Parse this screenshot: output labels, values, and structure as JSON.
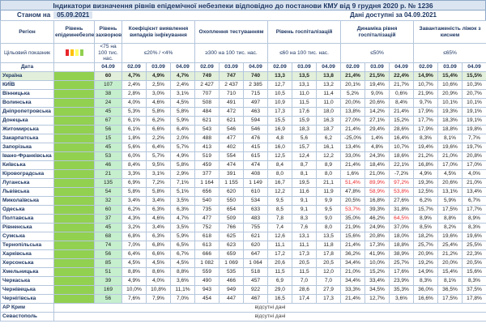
{
  "header": {
    "title": "Індикатори визначення рівнів епідемічної небезпеки відповідно до постанови КМУ від 9 грудня 2020 р. № 1236",
    "as_of_label": "Станом на",
    "as_of_date": "05.09.2021",
    "available_label": "Дані доступні за",
    "available_date": "04.09.2021"
  },
  "columns": {
    "region": "Регіон",
    "level": "Рівень епідемнебезпеки",
    "incidence": "Рівень захворюваності",
    "coef": "Коефіцієнт виявлення випадків інфікування",
    "testing": "Охоплення тестуванням",
    "hosp": "Рівень госпіталізацій",
    "dynamics": "Динаміка рівня госпіталізацій",
    "beds": "Завантаженість ліжок з киснем"
  },
  "target": {
    "label": "Цільовий показник",
    "incidence": "<75 на 100 тис. нас.",
    "coef": "≤20% / <4%",
    "testing": "≥300 на 100 тис. нас.",
    "hosp": "≤60 на 100 тис. нас.",
    "dynamics": "≤50%",
    "beds": "≤65%"
  },
  "dates": {
    "label": "Дата",
    "incidence": "04.09",
    "groups": [
      "02.09",
      "03.09",
      "04.09"
    ]
  },
  "rows": [
    {
      "region": "Україна",
      "cells": [
        "60",
        "4,7%",
        "4,9%",
        "4,7%",
        "749",
        "747",
        "740",
        "13,3",
        "13,5",
        "13,8",
        "21,4%",
        "21,5%",
        "22,4%",
        "14,9%",
        "15,4%",
        "15,5%"
      ]
    },
    {
      "region": "КИЇВ",
      "cells": [
        "107",
        "2,4%",
        "2,5%",
        "2,4%",
        "2 427",
        "2 437",
        "2 385",
        "12,7",
        "13,1",
        "13,2",
        "20,1%",
        "19,4%",
        "21,7%",
        "10,7%",
        "10,6%",
        "10,3%"
      ]
    },
    {
      "region": "Вінницька",
      "cells": [
        "38",
        "2,8%",
        "3,0%",
        "3,1%",
        "707",
        "710",
        "715",
        "10,5",
        "11,0",
        "11,4",
        "5,2%",
        "9,0%",
        "0,6%",
        "21,9%",
        "20,9%",
        "20,7%"
      ]
    },
    {
      "region": "Волинська",
      "cells": [
        "24",
        "4,0%",
        "4,6%",
        "4,5%",
        "508",
        "491",
        "497",
        "10,9",
        "11,5",
        "11,0",
        "20,0%",
        "20,6%",
        "8,4%",
        "9,7%",
        "10,1%",
        "10,1%"
      ]
    },
    {
      "region": "Дніпропетровська",
      "cells": [
        "45",
        "5,3%",
        "5,8%",
        "5,8%",
        "484",
        "472",
        "463",
        "17,3",
        "17,6",
        "18,0",
        "13,8%",
        "14,2%",
        "21,4%",
        "17,9%",
        "19,3%",
        "19,1%"
      ]
    },
    {
      "region": "Донецька",
      "cells": [
        "67",
        "6,1%",
        "6,2%",
        "5,9%",
        "621",
        "621",
        "594",
        "15,5",
        "15,9",
        "16,3",
        "27,0%",
        "27,1%",
        "15,2%",
        "17,7%",
        "18,3%",
        "19,1%"
      ]
    },
    {
      "region": "Житомирська",
      "cells": [
        "56",
        "6,1%",
        "6,6%",
        "6,4%",
        "543",
        "546",
        "546",
        "16,9",
        "18,3",
        "18,7",
        "21,4%",
        "29,4%",
        "28,6%",
        "17,9%",
        "18,8%",
        "19,8%"
      ]
    },
    {
      "region": "Закарпатська",
      "cells": [
        "15",
        "1,8%",
        "2,2%",
        "2,0%",
        "488",
        "477",
        "476",
        "4,8",
        "5,6",
        "6,2",
        "-25,0%",
        "1,4%",
        "16,4%",
        "8,3%",
        "8,1%",
        "7,7%"
      ]
    },
    {
      "region": "Запорізька",
      "cells": [
        "45",
        "5,6%",
        "6,4%",
        "5,7%",
        "413",
        "402",
        "415",
        "16,0",
        "15,7",
        "16,1",
        "13,4%",
        "4,8%",
        "10,7%",
        "19,4%",
        "19,6%",
        "19,7%"
      ]
    },
    {
      "region": "Івано-Франківська",
      "cells": [
        "53",
        "6,0%",
        "5,7%",
        "4,9%",
        "519",
        "554",
        "615",
        "12,5",
        "12,4",
        "12,2",
        "33,0%",
        "24,3%",
        "18,6%",
        "21,2%",
        "21,0%",
        "20,8%"
      ]
    },
    {
      "region": "Київська",
      "cells": [
        "46",
        "8,4%",
        "9,5%",
        "5,8%",
        "459",
        "474",
        "474",
        "8,4",
        "8,7",
        "8,9",
        "21,4%",
        "18,4%",
        "22,1%",
        "16,8%",
        "17,0%",
        "17,0%"
      ]
    },
    {
      "region": "Кіровоградська",
      "cells": [
        "21",
        "3,3%",
        "3,1%",
        "2,9%",
        "377",
        "391",
        "408",
        "8,0",
        "8,1",
        "8,0",
        "1,6%",
        "21,0%",
        "-7,2%",
        "4,9%",
        "4,5%",
        "4,0%"
      ]
    },
    {
      "region": "Луганська",
      "cells": [
        "135",
        "6,9%",
        "7,2%",
        "7,1%",
        "1 164",
        "1 155",
        "1 149",
        "16,7",
        "19,5",
        "21,1",
        {
          "text": "51,4%",
          "color": "#e8262a"
        },
        {
          "text": "89,9%",
          "color": "#e8262a"
        },
        {
          "text": "97,2%",
          "color": "#e8262a"
        },
        "19,3%",
        "20,6%",
        "21,0%"
      ]
    },
    {
      "region": "Львівська",
      "cells": [
        "54",
        "5,8%",
        "5,8%",
        "5,1%",
        "656",
        "620",
        "610",
        "12,2",
        "11,6",
        "11,9",
        "47,8%",
        {
          "text": "58,9%",
          "color": "#e8262a"
        },
        {
          "text": "53,8%",
          "color": "#e8262a"
        },
        "12,5%",
        "13,1%",
        "13,4%"
      ]
    },
    {
      "region": "Миколаївська",
      "cells": [
        "32",
        "3,4%",
        "3,4%",
        "3,5%",
        "540",
        "550",
        "534",
        "9,5",
        "9,1",
        "9,9",
        "20,5%",
        "16,8%",
        "27,6%",
        "6,2%",
        "5,9%",
        "6,7%"
      ]
    },
    {
      "region": "Одеська",
      "cells": [
        "60",
        "6,2%",
        "6,3%",
        "6,3%",
        "735",
        "654",
        "633",
        "8,5",
        "9,1",
        "9,5",
        {
          "text": "53,7%",
          "color": "#e8262a"
        },
        "39,3%",
        "31,8%",
        "15,7%",
        "17,5%",
        "17,7%"
      ]
    },
    {
      "region": "Полтавська",
      "cells": [
        "37",
        "4,3%",
        "4,6%",
        "4,7%",
        "477",
        "509",
        "483",
        "7,8",
        "8,3",
        "9,0",
        "35,0%",
        "46,2%",
        {
          "text": "64,5%",
          "color": "#e8262a"
        },
        "8,9%",
        "8,8%",
        "8,9%"
      ]
    },
    {
      "region": "Рівненська",
      "cells": [
        "45",
        "3,2%",
        "3,4%",
        "3,5%",
        "752",
        "766",
        "755",
        "7,4",
        "7,6",
        "8,0",
        "21,9%",
        "24,9%",
        "37,0%",
        "8,5%",
        "8,2%",
        "8,3%"
      ]
    },
    {
      "region": "Сумська",
      "cells": [
        "68",
        "6,8%",
        "6,3%",
        "5,9%",
        "618",
        "625",
        "621",
        "12,6",
        "13,1",
        "13,5",
        "15,6%",
        "20,8%",
        "18,0%",
        "18,2%",
        "19,6%",
        "19,6%"
      ]
    },
    {
      "region": "Тернопільська",
      "cells": [
        "74",
        "7,0%",
        "6,8%",
        "6,5%",
        "613",
        "623",
        "620",
        "11,1",
        "11,1",
        "11,8",
        "21,4%",
        "17,3%",
        "18,8%",
        "25,7%",
        "25,4%",
        "25,5%"
      ]
    },
    {
      "region": "Харківська",
      "cells": [
        "56",
        "6,4%",
        "6,6%",
        "6,7%",
        "666",
        "659",
        "647",
        "17,2",
        "17,3",
        "17,8",
        "36,2%",
        "41,9%",
        "38,9%",
        "20,9%",
        "21,2%",
        "22,3%"
      ]
    },
    {
      "region": "Херсонська",
      "cells": [
        "85",
        "4,5%",
        "4,5%",
        "4,5%",
        "1 082",
        "1 069",
        "1 064",
        "20,6",
        "20,5",
        "20,5",
        "34,4%",
        "10,0%",
        "25,7%",
        "19,2%",
        "20,0%",
        "20,5%"
      ]
    },
    {
      "region": "Хмельницька",
      "cells": [
        "51",
        "8,8%",
        "8,6%",
        "8,8%",
        "559",
        "535",
        "518",
        "11,5",
        "11,5",
        "12,0",
        "21,0%",
        "15,2%",
        "17,6%",
        "14,9%",
        "15,4%",
        "15,6%"
      ]
    },
    {
      "region": "Черкаська",
      "cells": [
        "39",
        "4,9%",
        "4,0%",
        "3,6%",
        "490",
        "466",
        "457",
        "6,9",
        "7,0",
        "7,0",
        "34,4%",
        "33,4%",
        "23,9%",
        "8,3%",
        "8,1%",
        "8,3%"
      ]
    },
    {
      "region": "Чернівецька",
      "cells": [
        "169",
        "10,0%",
        "10,8%",
        "11,1%",
        "943",
        "949",
        "922",
        "29,0",
        "28,6",
        "27,9",
        "33,3%",
        "34,5%",
        "35,3%",
        "36,0%",
        "36,5%",
        "37,5%"
      ]
    },
    {
      "region": "Чернігівська",
      "cells": [
        "56",
        "7,6%",
        "7,9%",
        "7,0%",
        "454",
        "447",
        "467",
        "16,5",
        "17,4",
        "17,3",
        "21,4%",
        "12,7%",
        "3,6%",
        "16,6%",
        "17,5%",
        "17,8%"
      ]
    }
  ],
  "no_data_rows": [
    {
      "region": "АР Крим",
      "text": "відсутні дані"
    },
    {
      "region": "Севастополь",
      "text": "відсутні дані"
    }
  ]
}
